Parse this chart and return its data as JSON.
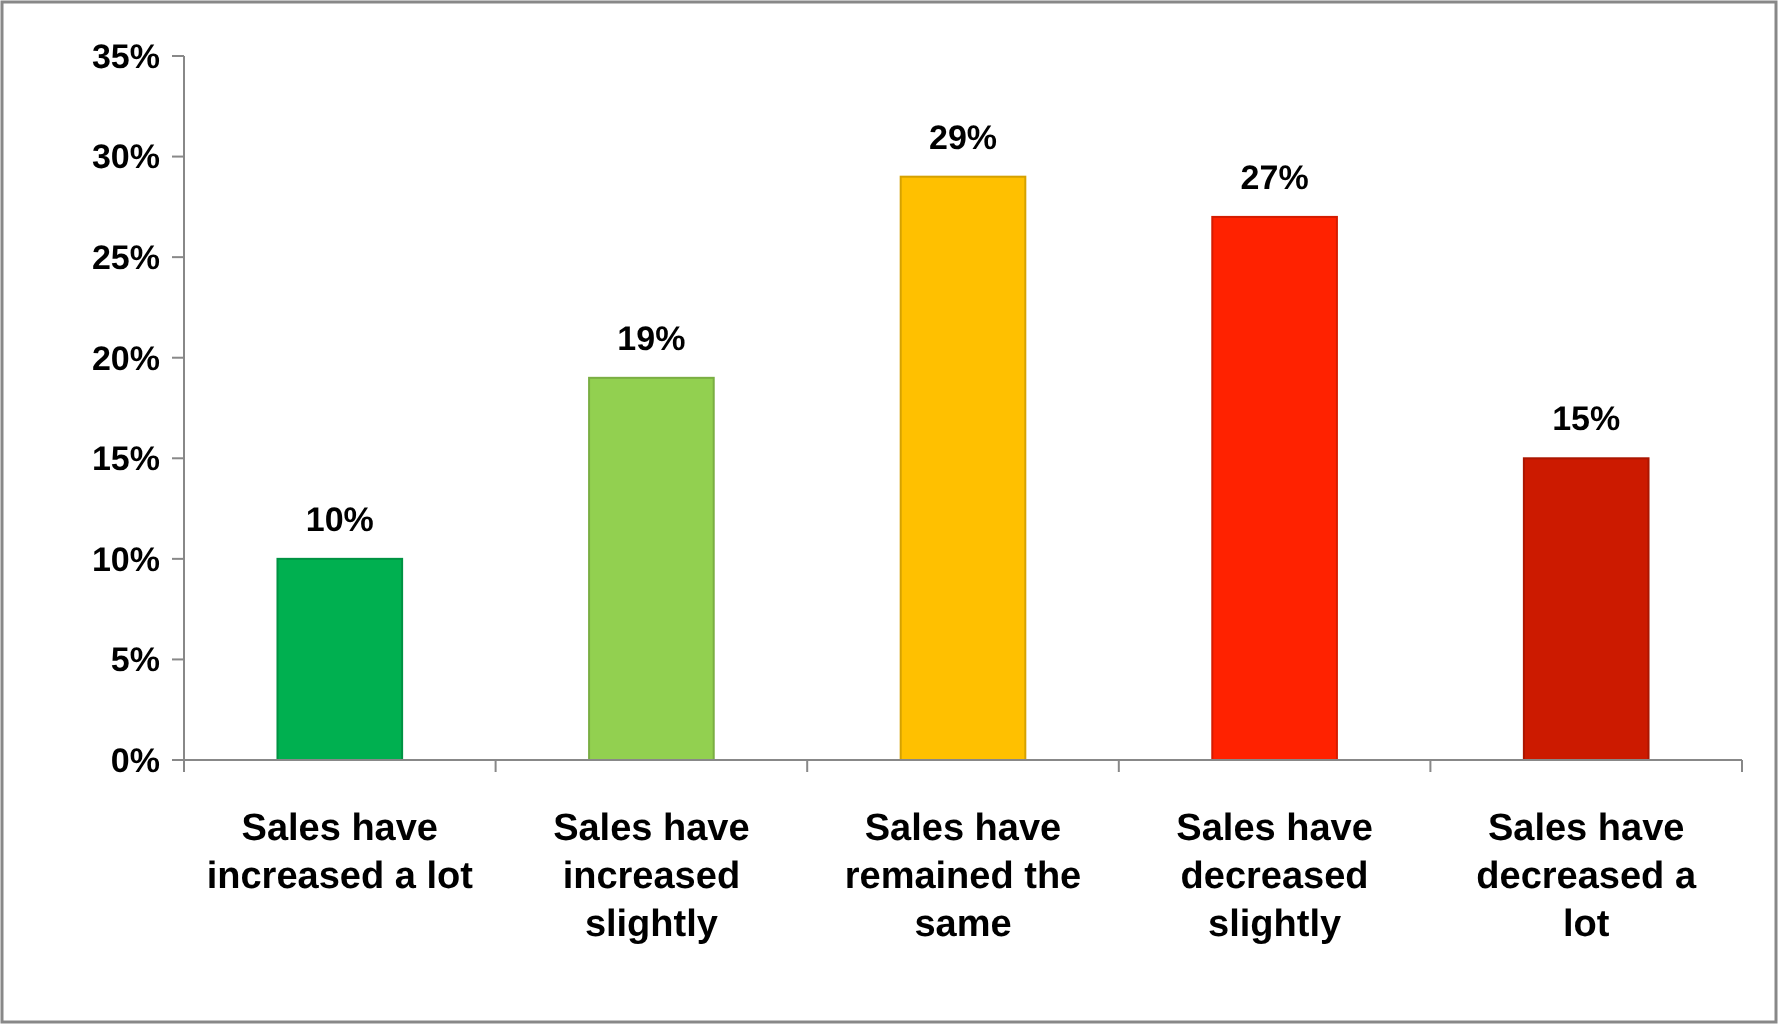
{
  "chart_data": {
    "type": "bar",
    "categories": [
      "Sales have increased a lot",
      "Sales have increased slightly",
      "Sales have remained the same",
      "Sales have decreased slightly",
      "Sales have decreased a lot"
    ],
    "values": [
      10,
      19,
      29,
      27,
      15
    ],
    "colors": [
      "#00b050",
      "#92d050",
      "#ffc000",
      "#ff2200",
      "#cc1a00"
    ],
    "value_labels": [
      "10%",
      "19%",
      "29%",
      "27%",
      "15%"
    ],
    "ylim": [
      0,
      35
    ],
    "yticks": [
      {
        "value": 0,
        "label": "0%"
      },
      {
        "value": 5,
        "label": "5%"
      },
      {
        "value": 10,
        "label": "10%"
      },
      {
        "value": 15,
        "label": "15%"
      },
      {
        "value": 20,
        "label": "20%"
      },
      {
        "value": 25,
        "label": "25%"
      },
      {
        "value": 30,
        "label": "30%"
      },
      {
        "value": 35,
        "label": "35%"
      }
    ],
    "grid": false
  }
}
